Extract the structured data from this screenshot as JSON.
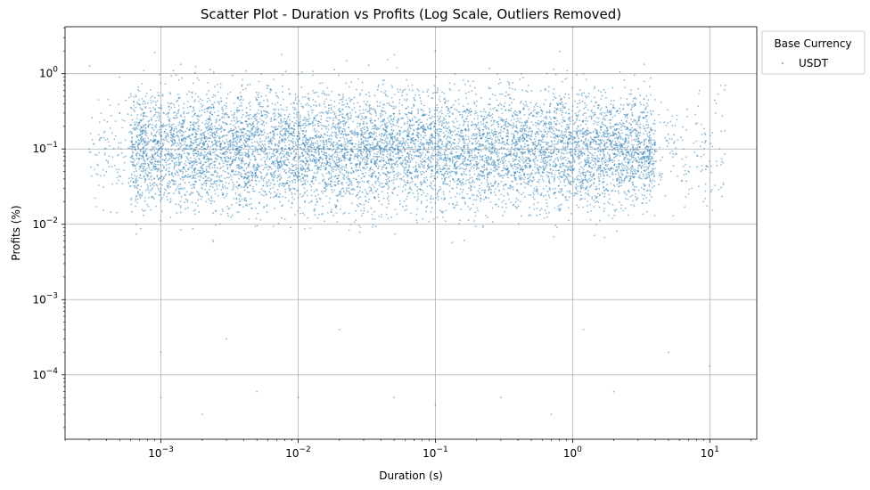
{
  "chart_data": {
    "type": "scatter",
    "title": "Scatter Plot - Duration vs Profits (Log Scale, Outliers Removed)",
    "xlabel": "Duration (s)",
    "ylabel": "Profits (%)",
    "xscale": "log",
    "yscale": "log",
    "xlim": [
      0.0002,
      22
    ],
    "ylim": [
      1.4e-05,
      4.2
    ],
    "x_ticks": [
      {
        "value": 0.001,
        "base": "10",
        "exp": "−3"
      },
      {
        "value": 0.01,
        "base": "10",
        "exp": "−2"
      },
      {
        "value": 0.1,
        "base": "10",
        "exp": "−1"
      },
      {
        "value": 1,
        "base": "10",
        "exp": "0"
      },
      {
        "value": 10,
        "base": "10",
        "exp": "1"
      }
    ],
    "y_ticks": [
      {
        "value": 0.0001,
        "base": "10",
        "exp": "−4"
      },
      {
        "value": 0.001,
        "base": "10",
        "exp": "−3"
      },
      {
        "value": 0.01,
        "base": "10",
        "exp": "−2"
      },
      {
        "value": 0.1,
        "base": "10",
        "exp": "−1"
      },
      {
        "value": 1,
        "base": "10",
        "exp": "0"
      }
    ],
    "grid": true,
    "legend": {
      "title": "Base Currency",
      "placement": "outside-top-right"
    },
    "series": [
      {
        "name": "USDT",
        "color": "#1f77b4",
        "marker_alpha": 0.5,
        "distribution": {
          "x_range": [
            0.0003,
            13
          ],
          "y_range": [
            3e-05,
            2
          ],
          "y_median": 0.1,
          "dense_x_range": [
            0.0006,
            4
          ],
          "dense_y_range": [
            0.01,
            1
          ]
        },
        "points": [
          [
            0.0003,
            0.1
          ],
          [
            0.0004,
            0.05
          ],
          [
            0.0005,
            0.3
          ],
          [
            0.001,
            0.0002
          ],
          [
            0.001,
            5e-05
          ],
          [
            0.002,
            3e-05
          ],
          [
            0.003,
            0.0003
          ],
          [
            0.005,
            6e-05
          ],
          [
            0.01,
            5e-05
          ],
          [
            0.02,
            0.0004
          ],
          [
            0.05,
            5e-05
          ],
          [
            0.1,
            4e-05
          ],
          [
            0.3,
            5e-05
          ],
          [
            0.7,
            3e-05
          ],
          [
            1.2,
            0.0004
          ],
          [
            2,
            6e-05
          ],
          [
            5,
            0.0002
          ],
          [
            10,
            0.00013
          ],
          [
            12,
            0.7
          ],
          [
            11,
            0.3
          ],
          [
            13,
            0.7
          ],
          [
            9,
            0.02
          ],
          [
            0.0005,
            0.9
          ],
          [
            0.0009,
            1.9
          ],
          [
            0.1,
            2.0
          ],
          [
            0.001,
            0.15
          ],
          [
            0.01,
            0.2
          ],
          [
            0.1,
            0.1
          ],
          [
            1,
            0.08
          ],
          [
            3,
            0.05
          ]
        ]
      }
    ]
  }
}
